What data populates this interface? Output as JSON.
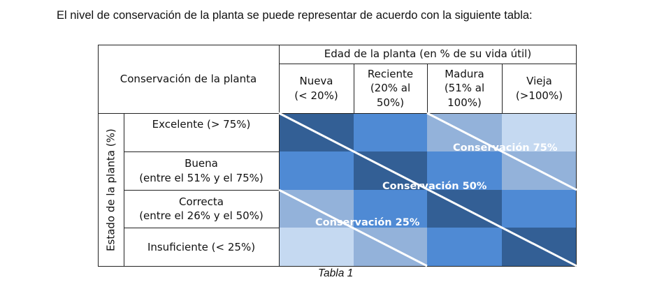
{
  "intro_text": "El nivel de conservación de la planta se puede representar de acuerdo con la siguiente tabla:",
  "table": {
    "corner_label": "Conservación de la planta",
    "age_header": "Edad de la planta (en % de su vida útil)",
    "row_axis_label": "Estado de la planta (%)",
    "age_columns": [
      {
        "lines": [
          "Nueva",
          "(< 20%)"
        ]
      },
      {
        "lines": [
          "Reciente",
          "(20% al",
          "50%)"
        ]
      },
      {
        "lines": [
          "Madura",
          "(51% al",
          "100%)"
        ]
      },
      {
        "lines": [
          "Vieja",
          "(>100%)"
        ]
      }
    ],
    "state_rows": [
      {
        "lines": [
          "Excelente (> 75%)"
        ]
      },
      {
        "lines": [
          "Buena",
          "(entre el 51% y el 75%)"
        ]
      },
      {
        "lines": [
          "Correcta",
          "(entre el 26% y el 50%)"
        ]
      },
      {
        "lines": [
          "Insuficiente (< 25%)"
        ]
      }
    ],
    "cell_colors": [
      [
        "#335f95",
        "#4f8ad4",
        "#93b2da",
        "#c5d9f1"
      ],
      [
        "#4f8ad4",
        "#335f95",
        "#4f8ad4",
        "#93b2da"
      ],
      [
        "#93b2da",
        "#4f8ad4",
        "#335f95",
        "#4f8ad4"
      ],
      [
        "#c5d9f1",
        "#93b2da",
        "#4f8ad4",
        "#335f95"
      ]
    ],
    "diagonal_labels": [
      "Conservación 75%",
      "Conservación 50%",
      "Conservación 25%"
    ]
  },
  "caption": "Tabla 1"
}
